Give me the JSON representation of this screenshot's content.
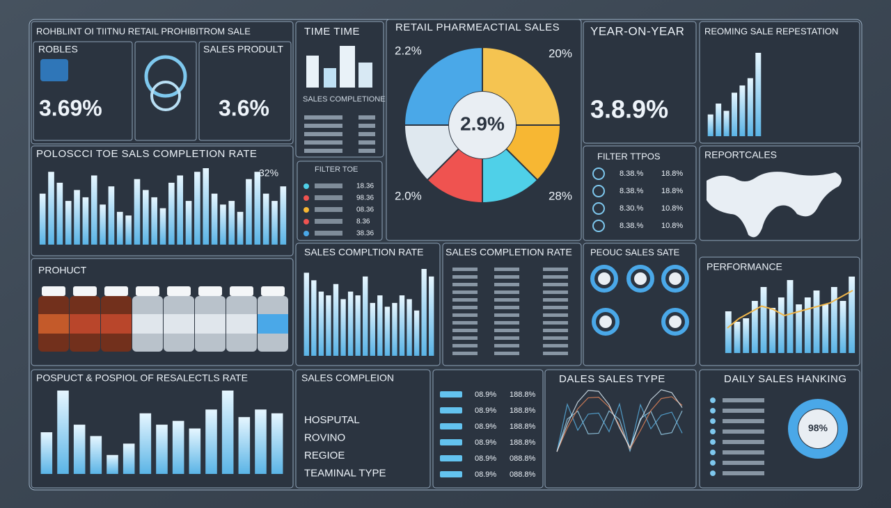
{
  "header": {
    "title": "ROHBLINT OI TIITNU RETAIL PROHIBITROM SALE"
  },
  "kpis": [
    {
      "label": "ROBLES",
      "value": "3.69%"
    },
    {
      "label": "SALES PRODULT",
      "value": "3.6%"
    }
  ],
  "time_panel": {
    "title": "TIME TIME",
    "subtitle": "SALES COMPLETIONE"
  },
  "filter_panel": {
    "title": "FILTER TOE",
    "rows": [
      "18.36",
      "98.36",
      "08.36",
      "8.36",
      "38.36"
    ]
  },
  "donut": {
    "title": "RETAIL PHARMEACTIAL SALES",
    "center": "2.9%",
    "corners": [
      "2.2%",
      "20%",
      "2.0%",
      "28%"
    ],
    "segments": [
      {
        "value": 25,
        "color": "#f5c451"
      },
      {
        "value": 12.5,
        "color": "#f7b733"
      },
      {
        "value": 12.5,
        "color": "#4fd0e8"
      },
      {
        "value": 12.5,
        "color": "#ef5350"
      },
      {
        "value": 12.5,
        "color": "#dfe8ef"
      },
      {
        "value": 25,
        "color": "#4aa8e8"
      }
    ]
  },
  "yoy": {
    "title": "YEAR-ON-YEAR",
    "value": "3.8.9%"
  },
  "reoming": {
    "title": "REOMING SALE REPESTATION",
    "values": [
      30,
      45,
      35,
      60,
      70,
      80,
      115
    ]
  },
  "completion": {
    "title": "POLOSCCI TOE SALS COMPLETION RATE",
    "badge": "32%",
    "values": [
      70,
      100,
      85,
      60,
      75,
      65,
      95,
      55,
      80,
      45,
      40,
      90,
      75,
      65,
      50,
      85,
      95,
      60,
      100,
      105,
      70,
      55,
      60,
      45,
      90,
      100,
      70,
      60,
      80
    ]
  },
  "filter_types": {
    "title": "FILTER TTPOS",
    "rows": [
      [
        "8.38.%",
        "18.8%"
      ],
      [
        "8.38.%",
        "18.8%"
      ],
      [
        "8.30.%",
        "10.8%"
      ],
      [
        "8.38.%",
        "10.8%"
      ]
    ]
  },
  "map": {
    "title": "REPORTCALES"
  },
  "product": {
    "title": "PROHUCT"
  },
  "rate_bars": {
    "title": "SALES COMPLTION RATE",
    "values": [
      110,
      100,
      85,
      80,
      95,
      75,
      85,
      80,
      105,
      70,
      80,
      65,
      70,
      80,
      75,
      60,
      115,
      105
    ]
  },
  "rate_table": {
    "title": "SALES COMPLETION RATE"
  },
  "product_rate": {
    "title": "PEOUC SALES SATE"
  },
  "performance": {
    "title": "PERFORMANCE",
    "bars": [
      60,
      45,
      50,
      75,
      95,
      65,
      80,
      105,
      70,
      80,
      90,
      70,
      95,
      75,
      110
    ],
    "line": [
      40,
      55,
      65,
      75,
      70,
      60,
      65,
      70,
      75,
      80,
      90,
      100
    ]
  },
  "resale": {
    "title": "POSPUCT & POSPIOL OF RESALECTLS RATE",
    "values": [
      55,
      110,
      65,
      50,
      25,
      40,
      80,
      65,
      70,
      60,
      85,
      110,
      75,
      85,
      80
    ]
  },
  "filters": {
    "title": "SALES COMPLEION",
    "items": [
      "HOSPUTAL",
      "ROVINO",
      "REGIOE",
      "TEAMINAL TYPE"
    ]
  },
  "rate_list": {
    "rows": [
      [
        "08.9%",
        "188.8%"
      ],
      [
        "08.9%",
        "188.8%"
      ],
      [
        "08.9%",
        "188.8%"
      ],
      [
        "08.9%",
        "188.8%"
      ],
      [
        "08.9%",
        "088.8%"
      ],
      [
        "08.9%",
        "088.8%"
      ]
    ]
  },
  "sales_type": {
    "title": "DALES SALES TYPE"
  },
  "ranking": {
    "title": "DAILY SALES HANKING",
    "center": "98%"
  }
}
